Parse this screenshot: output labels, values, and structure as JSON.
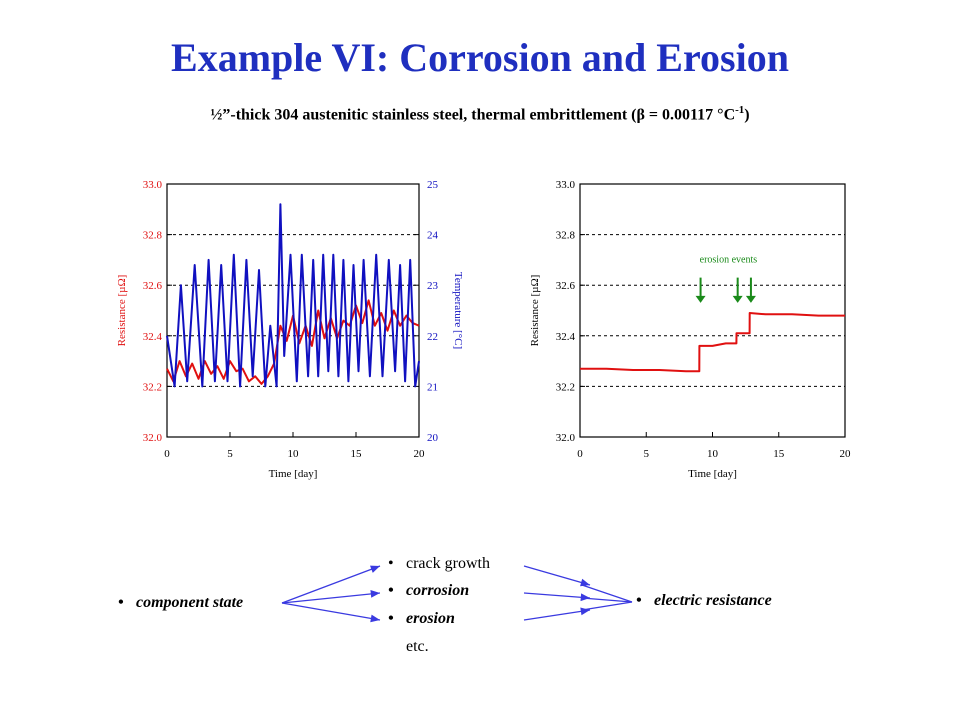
{
  "slide": {
    "title": "Example VI: Corrosion and Erosion",
    "subtitle_main": "½”-thick 304 austenitic stainless steel, thermal embrittlement (β = 0.00117 °C",
    "subtitle_sup": "-1",
    "subtitle_end": ")"
  },
  "colors": {
    "title": "#1f2fbf",
    "resistance": "#e01010",
    "temperature": "#1010c0",
    "annotation": "#1a8a1a",
    "flow_arrow": "#3a3ae0"
  },
  "chart_data": [
    {
      "type": "line",
      "xlabel": "Time [day]",
      "ylabel": "Resistance [µΩ]",
      "ylabel_right": "Temperature [°C]",
      "xlim": [
        0,
        20
      ],
      "ylim": [
        32.0,
        33.0
      ],
      "ylim_right": [
        20,
        25
      ],
      "xticks": [
        "0",
        "5",
        "10",
        "15",
        "20"
      ],
      "yticks": [
        "32.0",
        "32.2",
        "32.4",
        "32.6",
        "32.8",
        "33.0"
      ],
      "yticks_right": [
        "20",
        "21",
        "22",
        "23",
        "24",
        "25"
      ],
      "grid": "horizontal dashed",
      "series": [
        {
          "axis": "left",
          "color": "#e01010",
          "x": [
            0,
            0.5,
            1,
            1.5,
            2,
            2.5,
            3,
            3.5,
            4,
            4.5,
            5,
            5.5,
            6,
            6.5,
            7,
            7.5,
            8,
            8.5,
            9,
            9.5,
            10,
            10.5,
            11,
            11.5,
            12,
            12.5,
            13,
            13.5,
            14,
            14.5,
            15,
            15.5,
            16,
            16.5,
            17,
            17.5,
            18,
            18.5,
            19,
            19.5,
            20
          ],
          "y": [
            32.27,
            32.22,
            32.3,
            32.24,
            32.29,
            32.23,
            32.3,
            32.25,
            32.28,
            32.23,
            32.3,
            32.26,
            32.27,
            32.22,
            32.24,
            32.21,
            32.24,
            32.29,
            32.44,
            32.38,
            32.48,
            32.37,
            32.44,
            32.36,
            32.5,
            32.39,
            32.47,
            32.39,
            32.46,
            32.44,
            32.52,
            32.45,
            32.54,
            32.44,
            32.49,
            32.42,
            32.5,
            32.44,
            32.48,
            32.45,
            32.44
          ]
        },
        {
          "axis": "right",
          "color": "#1010c0",
          "x": [
            0,
            0.6,
            1.1,
            1.6,
            2.2,
            2.8,
            3.3,
            3.8,
            4.3,
            4.8,
            5.3,
            5.8,
            6.3,
            6.8,
            7.3,
            7.8,
            8.2,
            8.7,
            9.0,
            9.3,
            9.8,
            10.3,
            10.7,
            11.2,
            11.6,
            12.0,
            12.4,
            12.8,
            13.2,
            13.6,
            14.0,
            14.4,
            14.8,
            15.2,
            15.6,
            16.1,
            16.6,
            17.1,
            17.6,
            18.1,
            18.5,
            18.9,
            19.3,
            19.7,
            20
          ],
          "y": [
            22.0,
            21.0,
            23.0,
            21.1,
            23.4,
            21.0,
            23.5,
            21.1,
            23.4,
            21.1,
            23.6,
            21.0,
            23.5,
            21.2,
            23.3,
            21.0,
            22.2,
            21.0,
            24.6,
            21.6,
            23.6,
            21.1,
            23.6,
            21.2,
            23.5,
            21.2,
            23.6,
            21.3,
            23.6,
            21.2,
            23.5,
            21.1,
            23.4,
            21.3,
            23.5,
            21.2,
            23.6,
            21.2,
            23.5,
            21.3,
            23.4,
            21.1,
            23.5,
            21.0,
            21.5
          ]
        }
      ]
    },
    {
      "type": "line",
      "xlabel": "Time [day]",
      "ylabel": "Resistance [µΩ]",
      "xlim": [
        0,
        20
      ],
      "ylim": [
        32.0,
        33.0
      ],
      "xticks": [
        "0",
        "5",
        "10",
        "15",
        "20"
      ],
      "yticks": [
        "32.0",
        "32.2",
        "32.4",
        "32.6",
        "32.8",
        "33.0"
      ],
      "grid": "horizontal dashed",
      "annotation": {
        "label": "erosion events",
        "x": [
          9.1,
          11.9,
          12.9
        ]
      },
      "series": [
        {
          "color": "#e01010",
          "x": [
            0,
            2,
            4,
            6,
            8,
            9.0,
            9.01,
            10,
            11,
            11.8,
            11.81,
            12.6,
            12.8,
            12.81,
            14,
            16,
            18,
            20
          ],
          "y": [
            32.27,
            32.27,
            32.265,
            32.265,
            32.26,
            32.26,
            32.36,
            32.36,
            32.37,
            32.37,
            32.41,
            32.41,
            32.41,
            32.49,
            32.485,
            32.485,
            32.48,
            32.48
          ]
        }
      ]
    }
  ],
  "flow": {
    "left_item": "component state",
    "middle_items": [
      "crack growth",
      "corrosion",
      "erosion",
      "etc."
    ],
    "right_item": "electric resistance"
  }
}
